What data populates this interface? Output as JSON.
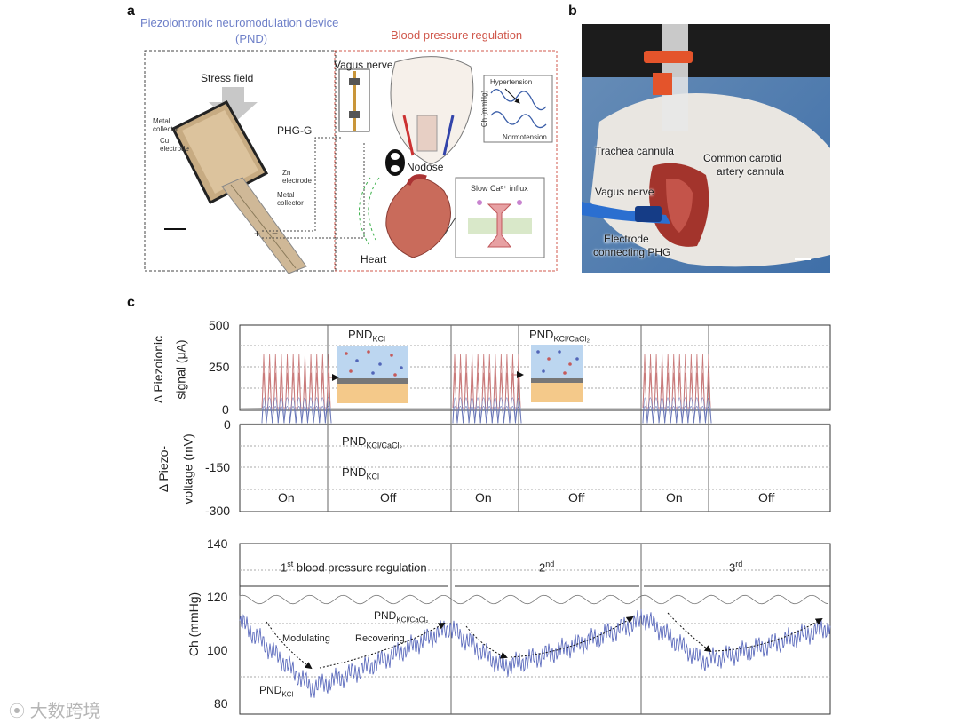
{
  "panel_a": {
    "letter": "a",
    "pnd_title": "Piezoiontronic neuromodulation device",
    "pnd_abbr": "(PND)",
    "bp_title": "Blood pressure regulation",
    "stress_field": "Stress field",
    "phg": "PHG-G",
    "metal_collector": "Metal collector",
    "cu_electrode": "Cu electrode",
    "zn_electrode": "Zn electrode",
    "metal_collector2": "Metal collector",
    "vagus_nerve": "Vagus nerve",
    "nodose": "Nodose",
    "heart": "Heart",
    "slow_ca": "Slow Ca²⁺ influx",
    "hypertension": "Hypertension",
    "normotension": "Normotension",
    "inset_ylabel": "Ch (mmHg)",
    "plus": "+",
    "minus": "−"
  },
  "panel_b": {
    "letter": "b",
    "trachea": "Trachea cannula",
    "carotid_l1": "Common carotid",
    "carotid_l2": "artery cannula",
    "vagus": "Vagus nerve",
    "electrode_l1": "Electrode",
    "electrode_l2": "connecting PHG"
  },
  "panel_c": {
    "letter": "c",
    "top": {
      "ylabel_l1": "Δ Piezoionic",
      "ylabel_l2": "signal (μA)",
      "yticks": [
        "500",
        "250",
        "0"
      ],
      "inset1_main": "PND",
      "inset1_sub": "KCl",
      "inset2_main": "PND",
      "inset2_sub": "KCl/CaCl₂"
    },
    "mid": {
      "ylabel_l1": "Δ Piezo-",
      "ylabel_l2": "voltage (mV)",
      "yticks": [
        "0",
        "-150",
        "-300"
      ],
      "state_labels": [
        "On",
        "Off",
        "On",
        "Off",
        "On",
        "Off"
      ],
      "ann1_main": "PND",
      "ann1_sub": "KCl/CaCl₂",
      "ann2_main": "PND",
      "ann2_sub": "KCl"
    },
    "bottom": {
      "ylabel": "Ch  (mmHg)",
      "yticks": [
        "140",
        "120",
        "100",
        "80"
      ],
      "reg1_sup": "st",
      "reg1_pre": "1",
      "reg1_text": " blood pressure regulation",
      "reg2_pre": "2",
      "reg2_sup": "nd",
      "reg3_pre": "3",
      "reg3_sup": "rd",
      "modulating": "Modulating",
      "recovering": "Recovering",
      "ann_ca_main": "PND",
      "ann_ca_sub": "KCl/CaCl₂",
      "ann_k_main": "PND",
      "ann_k_sub": "KCl"
    }
  },
  "watermark": "大数跨境",
  "colors": {
    "pnd_blue": "#6d7fc8",
    "bp_red": "#d0584c",
    "signal_red": "#c97a7a",
    "voltage_blue": "#6a78b8",
    "bp_trace_blue": "#5060b8",
    "gray_trace": "#777777"
  },
  "chart_data": [
    {
      "type": "line",
      "title": "",
      "ylabel": "Δ Piezoionic signal (μA)",
      "ylim": [
        0,
        500
      ],
      "yticks": [
        0,
        250,
        500
      ],
      "series": [
        {
          "name": "PND KCl",
          "segments": "oscillating 0–330 μA during On periods"
        },
        {
          "name": "PND KCl/CaCl₂",
          "segments": "oscillating 0–220 μA during On periods"
        }
      ]
    },
    {
      "type": "line",
      "ylabel": "Δ Piezo-voltage (mV)",
      "ylim": [
        -300,
        0
      ],
      "yticks": [
        -300,
        -150,
        0
      ],
      "series": [
        {
          "name": "PND KCl/CaCl₂",
          "min": -120
        },
        {
          "name": "PND KCl",
          "min": -180
        }
      ]
    },
    {
      "type": "line",
      "ylabel": "Ch (mmHg)",
      "ylim": [
        78,
        140
      ],
      "yticks": [
        80,
        100,
        120,
        140
      ],
      "series": [
        {
          "name": "PND KCl/CaCl₂",
          "baseline": 119
        },
        {
          "name": "PND KCl",
          "start": 111,
          "minimum": 85
        }
      ]
    }
  ]
}
